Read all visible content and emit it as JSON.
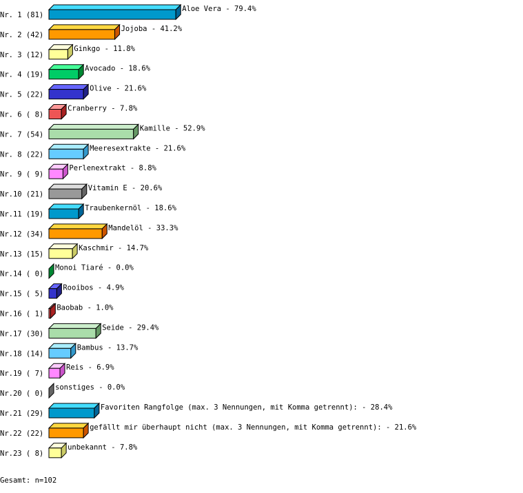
{
  "chart_data": {
    "type": "bar",
    "orientation": "horizontal",
    "style": "3d",
    "categories": [
      "Aloe Vera",
      "Jojoba",
      "Ginkgo",
      "Avocado",
      "Olive",
      "Cranberry",
      "Kamille",
      "Meeresextrakte",
      "Perlenextrakt",
      "Vitamin E",
      "Traubenkernöl",
      "Mandelöl",
      "Kaschmir",
      "Monoi Tiaré",
      "Rooibos",
      "Baobab",
      "Seide",
      "Bambus",
      "Reis",
      "sonstiges",
      "Favoriten Rangfolge (max. 3 Nennungen, mit Komma getrennt):",
      "gefällt mir überhaupt nicht (max. 3 Nennungen, mit Komma getrennt):",
      "unbekannt"
    ],
    "row_labels": [
      "Nr. 1 (81)",
      "Nr. 2 (42)",
      "Nr. 3 (12)",
      "Nr. 4 (19)",
      "Nr. 5 (22)",
      "Nr. 6 ( 8)",
      "Nr. 7 (54)",
      "Nr. 8 (22)",
      "Nr. 9 ( 9)",
      "Nr.10 (21)",
      "Nr.11 (19)",
      "Nr.12 (34)",
      "Nr.13 (15)",
      "Nr.14 ( 0)",
      "Nr.15 ( 5)",
      "Nr.16 ( 1)",
      "Nr.17 (30)",
      "Nr.18 (14)",
      "Nr.19 ( 7)",
      "Nr.20 ( 0)",
      "Nr.21 (29)",
      "Nr.22 (22)",
      "Nr.23 ( 8)"
    ],
    "counts": [
      81,
      42,
      12,
      19,
      22,
      8,
      54,
      22,
      9,
      21,
      19,
      34,
      15,
      0,
      5,
      1,
      30,
      14,
      7,
      0,
      29,
      22,
      8
    ],
    "values": [
      79.4,
      41.2,
      11.8,
      18.6,
      21.6,
      7.8,
      52.9,
      21.6,
      8.8,
      20.6,
      18.6,
      33.3,
      14.7,
      0.0,
      4.9,
      1.0,
      29.4,
      13.7,
      6.9,
      0.0,
      28.4,
      21.6,
      7.8
    ],
    "value_labels": [
      "79.4%",
      "41.2%",
      "11.8%",
      "18.6%",
      "21.6%",
      "7.8%",
      "52.9%",
      "21.6%",
      "8.8%",
      "20.6%",
      "18.6%",
      "33.3%",
      "14.7%",
      "0.0%",
      "4.9%",
      "1.0%",
      "29.4%",
      "13.7%",
      "6.9%",
      "0.0%",
      "28.4%",
      "21.6%",
      "7.8%"
    ],
    "unit": "%",
    "colors": [
      {
        "front": "#0099cc",
        "top": "#44ddff",
        "side": "#006699"
      },
      {
        "front": "#ff9900",
        "top": "#ffd840",
        "side": "#cc5500"
      },
      {
        "front": "#ffff99",
        "top": "#ffffdd",
        "side": "#cccc66"
      },
      {
        "front": "#00cc66",
        "top": "#44ff99",
        "side": "#008833"
      },
      {
        "front": "#3333cc",
        "top": "#6666ff",
        "side": "#222288"
      },
      {
        "front": "#ee5555",
        "top": "#ff9999",
        "side": "#aa2222"
      },
      {
        "front": "#aaddaa",
        "top": "#cceecc",
        "side": "#669966"
      },
      {
        "front": "#66ccff",
        "top": "#aaeeff",
        "side": "#3399cc"
      },
      {
        "front": "#ff88ff",
        "top": "#ffccff",
        "side": "#cc55cc"
      },
      {
        "front": "#999999",
        "top": "#dddddd",
        "side": "#666666"
      }
    ],
    "grid": false
  },
  "footer": "Gesamt: n=102"
}
